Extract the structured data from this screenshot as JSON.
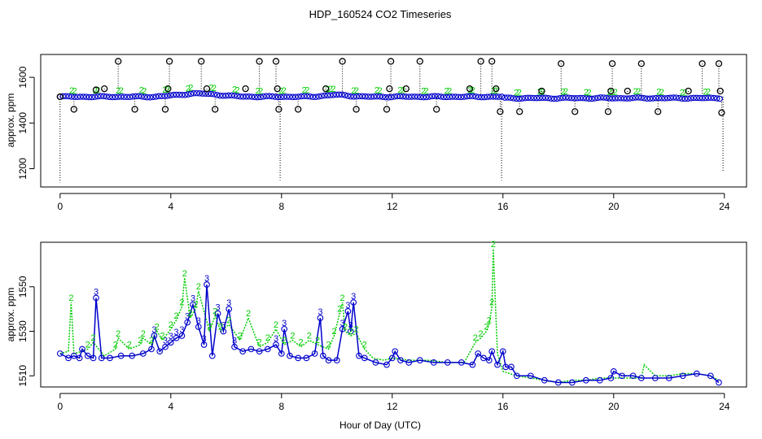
{
  "title": "HDP_160524  CO2 Timeseries",
  "colors": {
    "series1": "#000000",
    "series2": "#00cc00",
    "series3": "#0000cc",
    "axis": "#000000"
  },
  "chart_data": [
    {
      "type": "scatter",
      "name": "top-panel",
      "ylabel": "approx. ppm",
      "xlabel": "",
      "xlim": [
        -0.7,
        24.8
      ],
      "ylim": [
        1120,
        1700
      ],
      "xticks": [
        0,
        4,
        8,
        12,
        16,
        20,
        24
      ],
      "yticks": [
        1200,
        1400,
        1600
      ],
      "series": [
        {
          "name": "1",
          "color": "#000000",
          "marker": "o",
          "note": "sparse outliers with dotted drop lines",
          "x": [
            0.0,
            0.5,
            1.3,
            1.6,
            2.1,
            2.7,
            3.8,
            3.9,
            3.95,
            5.1,
            5.3,
            5.6,
            6.7,
            7.2,
            7.8,
            7.85,
            7.9,
            8.6,
            9.6,
            10.2,
            10.7,
            11.8,
            11.9,
            11.95,
            12.5,
            13.0,
            13.6,
            14.8,
            15.2,
            15.6,
            15.75,
            15.9,
            16.6,
            17.4,
            18.1,
            18.6,
            19.8,
            19.9,
            19.95,
            20.5,
            21.0,
            21.6,
            22.7,
            23.2,
            23.8,
            23.85,
            23.9
          ],
          "y": [
            1515,
            1460,
            1545,
            1550,
            1670,
            1460,
            1460,
            1550,
            1670,
            1670,
            1550,
            1460,
            1550,
            1670,
            1670,
            1550,
            1460,
            1460,
            1550,
            1670,
            1460,
            1460,
            1550,
            1670,
            1550,
            1670,
            1460,
            1550,
            1670,
            1670,
            1550,
            1450,
            1450,
            1540,
            1660,
            1450,
            1450,
            1540,
            1660,
            1540,
            1660,
            1450,
            1540,
            1660,
            1660,
            1540,
            1445
          ]
        },
        {
          "name": "2",
          "color": "#00cc00",
          "marker": "2",
          "note": "dense baseline near 1510-1530 ppm"
        },
        {
          "name": "3",
          "color": "#0000cc",
          "marker": "o",
          "note": "dense baseline near 1510-1530 ppm"
        }
      ]
    },
    {
      "type": "line",
      "name": "bottom-panel",
      "ylabel": "approx. ppm",
      "xlabel": "Hour of Day (UTC)",
      "xlim": [
        -0.7,
        24.8
      ],
      "ylim": [
        1505,
        1570
      ],
      "xticks": [
        0,
        4,
        8,
        12,
        16,
        20,
        24
      ],
      "yticks": [
        1510,
        1530,
        1550
      ],
      "series": [
        {
          "name": "2",
          "color": "#00cc00",
          "marker": "2",
          "note": "dotted line with '2' labels",
          "x": [
            0.0,
            0.3,
            0.4,
            0.5,
            0.8,
            1.0,
            1.2,
            1.6,
            2.0,
            2.1,
            2.5,
            2.9,
            3.0,
            3.3,
            3.5,
            3.7,
            4.0,
            4.2,
            4.4,
            4.5,
            4.7,
            4.9,
            5.0,
            5.4,
            5.6,
            5.8,
            6.1,
            6.5,
            6.8,
            7.2,
            7.5,
            7.8,
            8.1,
            8.4,
            8.7,
            9.0,
            9.3,
            9.7,
            9.9,
            10.1,
            10.2,
            10.3,
            10.5,
            10.7,
            11.0,
            11.3,
            11.7,
            12.0,
            12.6,
            13.3,
            14.0,
            14.6,
            15.0,
            15.2,
            15.4,
            15.5,
            15.6,
            15.65,
            15.8,
            16.0,
            16.5,
            17.0,
            17.5,
            18.0,
            18.5,
            19.0,
            19.5,
            20.0,
            20.5,
            21.0,
            21.1,
            21.5,
            22.0,
            22.5,
            23.0,
            23.5,
            23.8
          ],
          "y": [
            1520,
            1521,
            1543,
            1520,
            1521,
            1522,
            1525,
            1519,
            1522,
            1527,
            1522,
            1524,
            1527,
            1524,
            1530,
            1526,
            1531,
            1535,
            1541,
            1554,
            1536,
            1540,
            1548,
            1530,
            1537,
            1530,
            1533,
            1526,
            1536,
            1523,
            1525,
            1531,
            1524,
            1526,
            1523,
            1526,
            1524,
            1522,
            1528,
            1538,
            1543,
            1530,
            1528,
            1529,
            1522,
            1518,
            1517,
            1518,
            1517,
            1517,
            1516,
            1516,
            1525,
            1527,
            1530,
            1533,
            1541,
            1567,
            1520,
            1512,
            1510,
            1509,
            1508,
            1507,
            1508,
            1508,
            1509,
            1509,
            1509,
            1509,
            1515,
            1510,
            1510,
            1511,
            1511,
            1510,
            1508
          ]
        },
        {
          "name": "3",
          "color": "#0000cc",
          "marker": "3",
          "note": "solid line with 'o' markers and '3' labels",
          "x": [
            0.0,
            0.3,
            0.5,
            0.7,
            0.8,
            1.0,
            1.2,
            1.3,
            1.5,
            1.8,
            2.2,
            2.6,
            3.0,
            3.3,
            3.4,
            3.6,
            3.8,
            4.0,
            4.2,
            4.4,
            4.6,
            4.8,
            5.0,
            5.2,
            5.3,
            5.5,
            5.7,
            5.9,
            6.1,
            6.3,
            6.6,
            6.9,
            7.2,
            7.5,
            7.8,
            8.0,
            8.1,
            8.3,
            8.6,
            8.9,
            9.2,
            9.4,
            9.5,
            9.7,
            10.0,
            10.2,
            10.4,
            10.5,
            10.6,
            10.8,
            11.0,
            11.4,
            11.8,
            12.0,
            12.1,
            12.3,
            12.6,
            13.0,
            13.5,
            14.0,
            14.5,
            14.9,
            15.1,
            15.3,
            15.5,
            15.6,
            15.8,
            16.0,
            16.1,
            16.3,
            16.5,
            17.0,
            17.5,
            18.0,
            18.5,
            19.0,
            19.5,
            19.9,
            20.0,
            20.3,
            20.7,
            21.0,
            21.5,
            22.0,
            22.5,
            23.0,
            23.5,
            23.8
          ],
          "y": [
            1520,
            1518,
            1519,
            1518,
            1522,
            1519,
            1518,
            1545,
            1518,
            1518,
            1519,
            1519,
            1520,
            1522,
            1528,
            1521,
            1523,
            1525,
            1527,
            1528,
            1534,
            1542,
            1532,
            1524,
            1551,
            1519,
            1538,
            1530,
            1540,
            1523,
            1521,
            1522,
            1521,
            1522,
            1524,
            1520,
            1531,
            1519,
            1518,
            1518,
            1520,
            1536,
            1519,
            1517,
            1517,
            1531,
            1539,
            1530,
            1543,
            1519,
            1518,
            1516,
            1515,
            1518,
            1521,
            1517,
            1516,
            1517,
            1516,
            1516,
            1516,
            1515,
            1520,
            1518,
            1517,
            1521,
            1515,
            1521,
            1514,
            1514,
            1510,
            1510,
            1508,
            1507,
            1507,
            1508,
            1508,
            1509,
            1512,
            1510,
            1510,
            1509,
            1509,
            1509,
            1510,
            1511,
            1510,
            1507
          ]
        }
      ]
    }
  ]
}
